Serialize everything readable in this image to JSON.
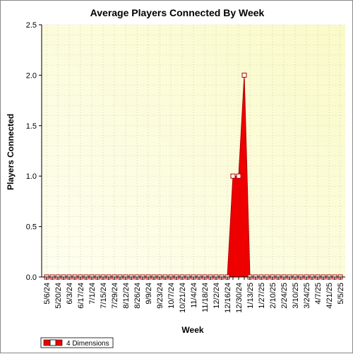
{
  "chart_data": {
    "type": "area",
    "title": "Average Players Connected By Week",
    "xlabel": "Week",
    "ylabel": "Players Connected",
    "ylim": [
      0,
      2.5
    ],
    "yticks": [
      "0.0",
      "0.5",
      "1.0",
      "1.5",
      "2.0",
      "2.5"
    ],
    "x": [
      "5/6/24",
      "5/13/24",
      "5/20/24",
      "5/27/24",
      "6/3/24",
      "6/10/24",
      "6/17/24",
      "6/24/24",
      "7/1/24",
      "7/8/24",
      "7/15/24",
      "7/22/24",
      "7/29/24",
      "8/5/24",
      "8/12/24",
      "8/19/24",
      "8/26/24",
      "9/2/24",
      "9/9/24",
      "9/16/24",
      "9/23/24",
      "9/30/24",
      "10/7/24",
      "10/14/24",
      "10/21/24",
      "10/28/24",
      "11/4/24",
      "11/11/24",
      "11/18/24",
      "11/25/24",
      "12/2/24",
      "12/9/24",
      "12/16/24",
      "12/23/24",
      "12/30/24",
      "1/6/25",
      "1/13/25",
      "1/20/25",
      "1/27/25",
      "2/3/25",
      "2/10/25",
      "2/17/25",
      "2/24/25",
      "3/3/25",
      "3/10/25",
      "3/17/25",
      "3/24/25",
      "3/31/25",
      "4/7/25",
      "4/14/25",
      "4/21/25",
      "4/28/25",
      "5/5/25"
    ],
    "xtick_labels": [
      "5/6/24",
      "5/20/24",
      "6/3/24",
      "6/17/24",
      "7/1/24",
      "7/15/24",
      "7/29/24",
      "8/12/24",
      "8/26/24",
      "9/9/24",
      "9/23/24",
      "10/7/24",
      "10/21/24",
      "11/4/24",
      "11/18/24",
      "12/2/24",
      "12/16/24",
      "12/30/24",
      "1/13/25",
      "1/27/25",
      "2/10/25",
      "2/24/25",
      "3/10/25",
      "3/24/25",
      "4/7/25",
      "4/21/25",
      "5/5/25"
    ],
    "series": [
      {
        "name": "4 Dimensions",
        "color": "#ee0000",
        "values": [
          0,
          0,
          0,
          0,
          0,
          0,
          0,
          0,
          0,
          0,
          0,
          0,
          0,
          0,
          0,
          0,
          0,
          0,
          0,
          0,
          0,
          0,
          0,
          0,
          0,
          0,
          0,
          0,
          0,
          0,
          0,
          0,
          0,
          1,
          1,
          2,
          0,
          0,
          0,
          0,
          0,
          0,
          0,
          0,
          0,
          0,
          0,
          0,
          0,
          0,
          0,
          0,
          0
        ]
      }
    ],
    "grid": true,
    "legend": "bottom-left",
    "plot_background": [
      "#fefef0",
      "#fafac8"
    ]
  }
}
